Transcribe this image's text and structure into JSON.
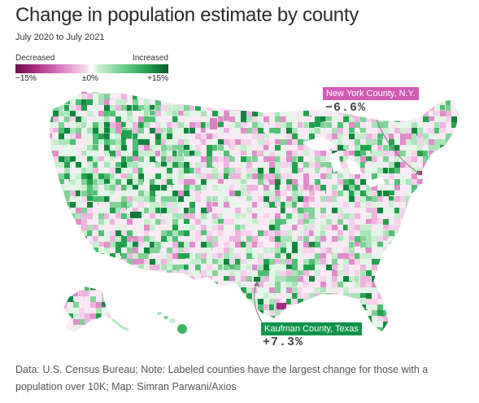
{
  "title": "Change in population estimate by county",
  "subtitle": "July 2020 to July 2021",
  "legend": {
    "label_low": "Decreased",
    "label_high": "Increased",
    "tick_min": "−15%",
    "tick_mid": "±0%",
    "tick_max": "+15%",
    "colors": {
      "strong_decrease": "#6e0b49",
      "decrease": "#dd7fc3",
      "neutral": "#ffffff",
      "increase": "#6fd08c",
      "strong_increase": "#0a5a27"
    }
  },
  "callouts": {
    "new_york": {
      "label": "New York County, N.Y.",
      "value": "−6.6%",
      "color": "#d25ab4"
    },
    "kaufman": {
      "label": "Kaufman County, Texas",
      "value": "+7.3%",
      "color": "#11944a"
    }
  },
  "footer": "Data: U.S. Census Bureau; Note: Labeled counties have the largest change for those with a population over 10K; Map: Simran Parwani/Axios"
}
